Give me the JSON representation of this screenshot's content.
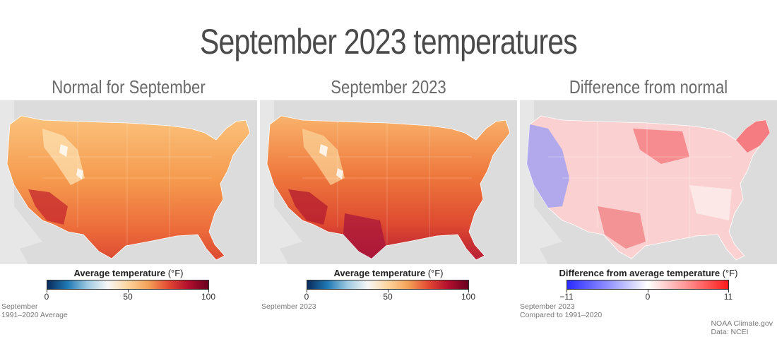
{
  "title": "September 2023 temperatures",
  "panels": [
    {
      "title": "Normal for September",
      "legend_title": "Average temperature",
      "legend_unit": "(°F)",
      "ticks": [
        "0",
        "50",
        "100"
      ],
      "caption_line1": "September",
      "caption_line2": "1991–2020 Average",
      "scale_colors": [
        "#0a2b5c",
        "#1f78b4",
        "#9ecae1",
        "#f7f7f7",
        "#fdd49e",
        "#f4a259",
        "#e34a33",
        "#b30f2e",
        "#67001f"
      ]
    },
    {
      "title": "September 2023",
      "legend_title": "Average temperature",
      "legend_unit": "(°F)",
      "ticks": [
        "0",
        "50",
        "100"
      ],
      "caption_line1": "September 2023",
      "caption_line2": "",
      "scale_colors": [
        "#0a2b5c",
        "#1f78b4",
        "#9ecae1",
        "#f7f7f7",
        "#fdd49e",
        "#f4a259",
        "#e34a33",
        "#b30f2e",
        "#67001f"
      ]
    },
    {
      "title": "Difference from normal",
      "legend_title": "Difference from average temperature",
      "legend_unit": "(°F)",
      "ticks": [
        "−11",
        "0",
        "11"
      ],
      "caption_line1": "September 2023",
      "caption_line2": "Compared to 1991–2020",
      "scale_colors": [
        "#2b2bff",
        "#8f8fff",
        "#ffffff",
        "#ff8f8f",
        "#ff1a1a"
      ]
    }
  ],
  "credit_line1": "NOAA Climate.gov",
  "credit_line2": "Data: NCEI"
}
